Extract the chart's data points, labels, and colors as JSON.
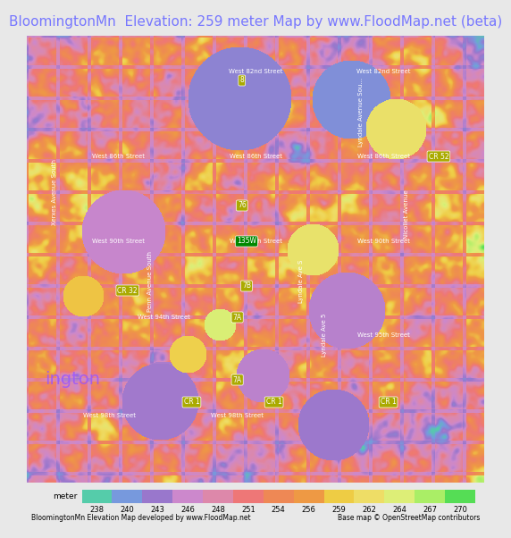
{
  "title": "BloomingtonMn  Elevation: 259 meter Map by www.FloodMap.net (beta)",
  "title_color": "#7777ff",
  "title_fontsize": 11,
  "bg_color": "#e8e8e8",
  "map_bg": "#e8d8c8",
  "colorbar_values": [
    238,
    240,
    243,
    246,
    248,
    251,
    254,
    256,
    259,
    262,
    264,
    267,
    270
  ],
  "colorbar_colors": [
    "#55ccaa",
    "#7799dd",
    "#9977cc",
    "#cc88cc",
    "#dd88aa",
    "#ee7777",
    "#ee8855",
    "#ee9944",
    "#eecc44",
    "#eedd66",
    "#ddee77",
    "#aaee66",
    "#55dd55"
  ],
  "footer_left": "BloomingtonMn Elevation Map developed by www.FloodMap.net",
  "footer_right": "Base map © OpenStreetMap contributors",
  "footer_label": "meter",
  "map_image_placeholder": true
}
